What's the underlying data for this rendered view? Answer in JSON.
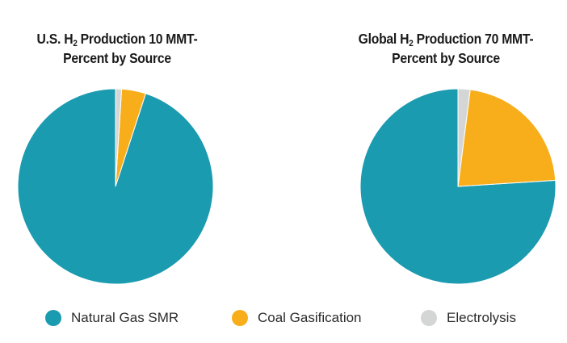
{
  "chart_data": [
    {
      "type": "pie",
      "title_prefix": "U.S. H",
      "title_sub": "2",
      "title_suffix": " Production 10 MMT-",
      "title_line2": "Percent by Source",
      "slices": [
        {
          "label": "Natural Gas SMR",
          "value": 95,
          "color": "#1b9bb0"
        },
        {
          "label": "Coal Gasification",
          "value": 4,
          "color": "#f8ae1b"
        },
        {
          "label": "Electrolysis",
          "value": 1,
          "color": "#d4d6d6"
        }
      ]
    },
    {
      "type": "pie",
      "title_prefix": "Global H",
      "title_sub": "2",
      "title_suffix": " Production 70 MMT-",
      "title_line2": "Percent by Source",
      "slices": [
        {
          "label": "Natural Gas SMR",
          "value": 76,
          "color": "#1b9bb0"
        },
        {
          "label": "Coal Gasification",
          "value": 22,
          "color": "#f8ae1b"
        },
        {
          "label": "Electrolysis",
          "value": 2,
          "color": "#d4d6d6"
        }
      ]
    }
  ],
  "legend": [
    {
      "label": "Natural Gas SMR",
      "color": "#1b9bb0"
    },
    {
      "label": "Coal Gasification",
      "color": "#f8ae1b"
    },
    {
      "label": "Electrolysis",
      "color": "#d4d6d6"
    }
  ]
}
